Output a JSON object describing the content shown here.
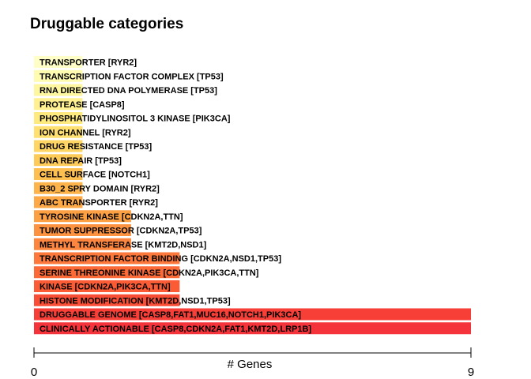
{
  "chart_data": {
    "type": "bar",
    "orientation": "horizontal",
    "title": "Druggable categories",
    "xlabel": "# Genes",
    "ylabel": "",
    "xlim": [
      0,
      9
    ],
    "x_ticks": [
      "0",
      "9"
    ],
    "grid": false,
    "legend": "none",
    "bars": [
      {
        "label": "TRANSPORTER [RYR2]",
        "value": 1,
        "color": "#fffec6"
      },
      {
        "label": "TRANSCRIPTION FACTOR COMPLEX [TP53]",
        "value": 1,
        "color": "#fffbb0"
      },
      {
        "label": "RNA DIRECTED DNA POLYMERASE [TP53]",
        "value": 1,
        "color": "#fff7a0"
      },
      {
        "label": "PROTEASE [CASP8]",
        "value": 1,
        "color": "#fff090"
      },
      {
        "label": "PHOSPHATIDYLINOSITOL 3 KINASE [PIK3CA]",
        "value": 1,
        "color": "#ffea80"
      },
      {
        "label": "ION CHANNEL [RYR2]",
        "value": 1,
        "color": "#ffe070"
      },
      {
        "label": "DRUG RESISTANCE [TP53]",
        "value": 1,
        "color": "#ffd664"
      },
      {
        "label": "DNA REPAIR [TP53]",
        "value": 1,
        "color": "#ffcb58"
      },
      {
        "label": "CELL SURFACE [NOTCH1]",
        "value": 1,
        "color": "#ffbf50"
      },
      {
        "label": "B30_2 SPRY DOMAIN [RYR2]",
        "value": 1,
        "color": "#feb44a"
      },
      {
        "label": "ABC TRANSPORTER [RYR2]",
        "value": 1,
        "color": "#fea946"
      },
      {
        "label": "TYROSINE KINASE [CDKN2A,TTN]",
        "value": 2,
        "color": "#fd9f43"
      },
      {
        "label": "TUMOR SUPPRESSOR [CDKN2A,TP53]",
        "value": 2,
        "color": "#fd9240"
      },
      {
        "label": "METHYL TRANSFERASE [KMT2D,NSD1]",
        "value": 2,
        "color": "#fd853d"
      },
      {
        "label": "TRANSCRIPTION FACTOR BINDING [CDKN2A,NSD1,TP53]",
        "value": 3,
        "color": "#fd783a"
      },
      {
        "label": "SERINE THREONINE KINASE [CDKN2A,PIK3CA,TTN]",
        "value": 3,
        "color": "#fc6a38"
      },
      {
        "label": "KINASE [CDKN2A,PIK3CA,TTN]",
        "value": 3,
        "color": "#fb5c36"
      },
      {
        "label": "HISTONE MODIFICATION [KMT2D,NSD1,TP53]",
        "value": 3,
        "color": "#f94d36"
      },
      {
        "label": "DRUGGABLE GENOME [CASP8,FAT1,MUC16,NOTCH1,PIK3CA]",
        "value": 9,
        "color": "#f73f38"
      },
      {
        "label": "CLINICALLY ACTIONABLE [CASP8,CDKN2A,FAT1,KMT2D,LRP1B]",
        "value": 9,
        "color": "#f4333a"
      }
    ]
  }
}
